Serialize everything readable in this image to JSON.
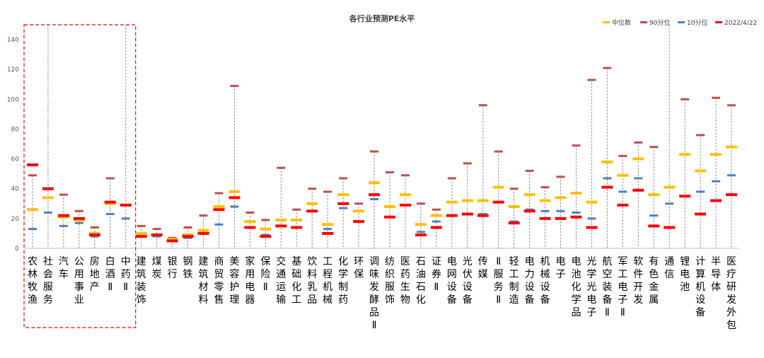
{
  "chart_data": {
    "type": "range-marker",
    "title": "各行业预测PE水平",
    "xlabel": "",
    "ylabel": "",
    "ylim": [
      0,
      150
    ],
    "yticks": [
      0,
      20,
      40,
      60,
      80,
      100,
      120,
      140
    ],
    "grid": false,
    "legend_position": "top-right",
    "legend": [
      {
        "key": "median",
        "label": "中位数",
        "color": "#FFC000"
      },
      {
        "key": "p90",
        "label": "90分位",
        "color": "#C0504D"
      },
      {
        "key": "p10",
        "label": "10分位",
        "color": "#4F81BD"
      },
      {
        "key": "current",
        "label": "2022/4/22",
        "color": "#FF0000"
      }
    ],
    "highlight_group": {
      "from_index": 0,
      "to_index": 6,
      "style": "dashed-red-box"
    },
    "categories": [
      {
        "label": "农林牧渔",
        "median": 26,
        "p90": 49,
        "p10": 13,
        "current": 56
      },
      {
        "label": "社会服务",
        "median": 34,
        "p90": 150,
        "p10": 24,
        "current": 40
      },
      {
        "label": "汽车",
        "median": 21,
        "p90": 36,
        "p10": 15,
        "current": 22
      },
      {
        "label": "公用事业",
        "median": 19,
        "p90": 25,
        "p10": 17,
        "current": 20
      },
      {
        "label": "房地产",
        "median": 10,
        "p90": 14,
        "p10": 8,
        "current": 9
      },
      {
        "label": "白酒Ⅱ",
        "median": 30,
        "p90": 47,
        "p10": 23,
        "current": 31
      },
      {
        "label": "中药Ⅱ",
        "median": 29,
        "p90": 150,
        "p10": 20,
        "current": 29
      },
      {
        "label": "建筑装饰",
        "median": 10,
        "p90": 15,
        "p10": 8,
        "current": 8
      },
      {
        "label": "煤炭",
        "median": 9,
        "p90": 13,
        "p10": 8,
        "current": 9
      },
      {
        "label": "银行",
        "median": 6,
        "p90": 7,
        "p10": 5,
        "current": 5
      },
      {
        "label": "钢铁",
        "median": 9,
        "p90": 14,
        "p10": 7,
        "current": 8
      },
      {
        "label": "建筑材料",
        "median": 12,
        "p90": 22,
        "p10": 10,
        "current": 10
      },
      {
        "label": "商贸零售",
        "median": 28,
        "p90": 37,
        "p10": 16,
        "current": 26
      },
      {
        "label": "美容护理",
        "median": 38,
        "p90": 109,
        "p10": 28,
        "current": 34
      },
      {
        "label": "家用电器",
        "median": 18,
        "p90": 24,
        "p10": 14,
        "current": 14
      },
      {
        "label": "保险Ⅱ",
        "median": 13,
        "p90": 19,
        "p10": 9,
        "current": 8
      },
      {
        "label": "交通运输",
        "median": 19,
        "p90": 54,
        "p10": 15,
        "current": 15
      },
      {
        "label": "基础化工",
        "median": 19,
        "p90": 26,
        "p10": 14,
        "current": 14
      },
      {
        "label": "饮料乳品",
        "median": 30,
        "p90": 40,
        "p10": 25,
        "current": 25
      },
      {
        "label": "工程机械",
        "median": 16,
        "p90": 38,
        "p10": 13,
        "current": 10
      },
      {
        "label": "化学制药",
        "median": 36,
        "p90": 47,
        "p10": 27,
        "current": 30
      },
      {
        "label": "环保",
        "median": 25,
        "p90": 30,
        "p10": 18,
        "current": 18
      },
      {
        "label": "调味发酵品Ⅱ",
        "median": 44,
        "p90": 65,
        "p10": 33,
        "current": 36
      },
      {
        "label": "纺织服饰",
        "median": 28,
        "p90": 51,
        "p10": 21,
        "current": 21
      },
      {
        "label": "医药生物",
        "median": 36,
        "p90": 49,
        "p10": 29,
        "current": 29
      },
      {
        "label": "石油石化",
        "median": 16,
        "p90": 30,
        "p10": 11,
        "current": 9
      },
      {
        "label": "证券Ⅱ",
        "median": 22,
        "p90": 26,
        "p10": 18,
        "current": 14
      },
      {
        "label": "电网设备",
        "median": 31,
        "p90": 47,
        "p10": 22,
        "current": 22
      },
      {
        "label": "光伏设备",
        "median": 32,
        "p90": 57,
        "p10": 23,
        "current": 23
      },
      {
        "label": "传媒",
        "median": 32,
        "p90": 96,
        "p10": 23,
        "current": 22
      },
      {
        "label": "Ⅱ服务Ⅱ",
        "median": 41,
        "p90": 65,
        "p10": 31,
        "current": 31
      },
      {
        "label": "轻工制造",
        "median": 28,
        "p90": 40,
        "p10": 18,
        "current": 17
      },
      {
        "label": "电力设备",
        "median": 36,
        "p90": 52,
        "p10": 26,
        "current": 25
      },
      {
        "label": "机械设备",
        "median": 32,
        "p90": 41,
        "p10": 25,
        "current": 20
      },
      {
        "label": "电子",
        "median": 34,
        "p90": 48,
        "p10": 25,
        "current": 20
      },
      {
        "label": "电池化学品",
        "median": 37,
        "p90": 69,
        "p10": 24,
        "current": 21
      },
      {
        "label": "光学光电子",
        "median": 31,
        "p90": 113,
        "p10": 20,
        "current": 14
      },
      {
        "label": "航空装备Ⅱ",
        "median": 58,
        "p90": 121,
        "p10": 47,
        "current": 41
      },
      {
        "label": "军工电子Ⅱ",
        "median": 49,
        "p90": 62,
        "p10": 38,
        "current": 29
      },
      {
        "label": "软件开发",
        "median": 60,
        "p90": 71,
        "p10": 47,
        "current": 39
      },
      {
        "label": "有色金属",
        "median": 36,
        "p90": 68,
        "p10": 22,
        "current": 15
      },
      {
        "label": "通信",
        "median": 41,
        "p90": 150,
        "p10": 30,
        "current": 14
      },
      {
        "label": "锂电池",
        "median": 63,
        "p90": 100,
        "p10": 35,
        "current": 35
      },
      {
        "label": "计算机设备",
        "median": 52,
        "p90": 76,
        "p10": 38,
        "current": 23
      },
      {
        "label": "半导体",
        "median": 63,
        "p90": 101,
        "p10": 45,
        "current": 32
      },
      {
        "label": "医疗研发外包",
        "median": 68,
        "p90": 96,
        "p10": 49,
        "current": 36
      }
    ]
  }
}
